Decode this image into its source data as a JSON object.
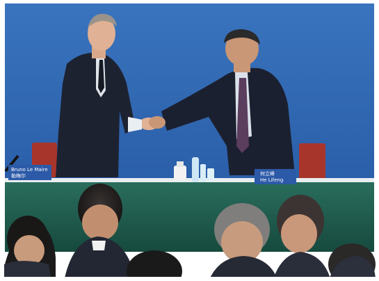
{
  "photo": {
    "scene": "Two officials shaking hands on stage in front of a blue backdrop",
    "placards": [
      {
        "id": "left",
        "line1": "Bruno Le Maire",
        "line2": "勒梅尔"
      },
      {
        "id": "right",
        "line1": "何立峰",
        "line2": "He Lifeng"
      }
    ],
    "colors": {
      "backdrop": "#2f6ab4",
      "table_cloth": "#1f5c4d",
      "placard": "#2c5aa8",
      "suit_dark": "#1d2231",
      "chair_red": "#a8352b"
    }
  }
}
